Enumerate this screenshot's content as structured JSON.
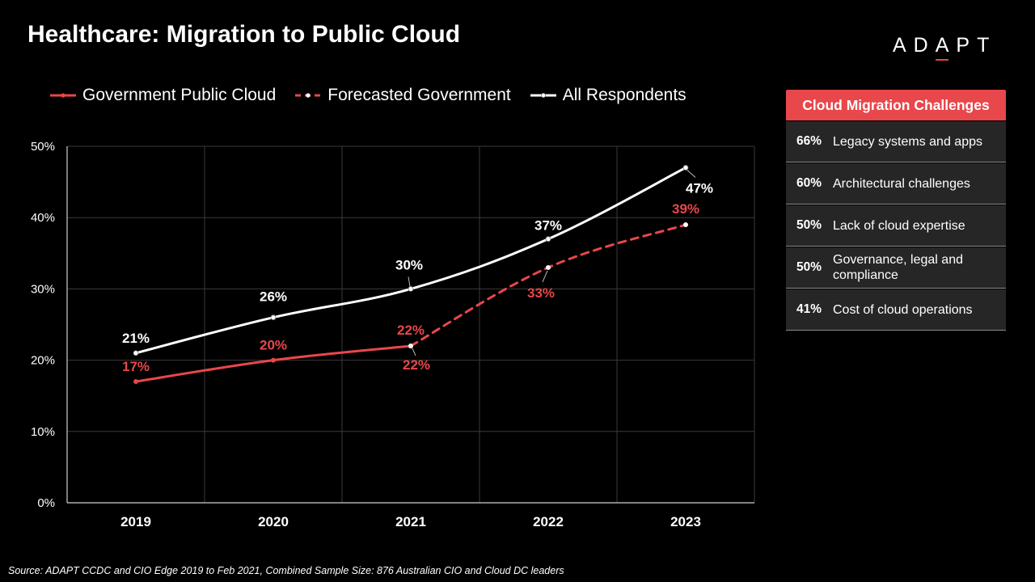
{
  "page": {
    "title": "Healthcare: Migration to Public Cloud",
    "logo": {
      "before": "AD",
      "accent": "A",
      "after": "PT"
    },
    "source": "Source: ADAPT CCDC and CIO Edge 2019  to Feb 2021, Combined Sample Size: 876 Australian CIO and Cloud DC leaders"
  },
  "colors": {
    "background": "#000000",
    "accent": "#e8474b",
    "panel_row": "#262626",
    "line_white": "#ffffff",
    "grid": "#3a3a3a"
  },
  "chart_data": {
    "type": "line",
    "title": "",
    "xlabel": "",
    "ylabel": "",
    "categories": [
      "2019",
      "2020",
      "2021",
      "2022",
      "2023"
    ],
    "ylim": [
      0,
      50
    ],
    "y_ticks": [
      "0%",
      "10%",
      "20%",
      "30%",
      "40%",
      "50%"
    ],
    "grid": true,
    "legend_position": "top-left",
    "series": [
      {
        "name": "Government Public Cloud",
        "values": [
          17,
          20,
          22,
          null,
          null
        ],
        "labels": [
          "17%",
          "20%",
          "22%",
          "",
          ""
        ],
        "color": "#e8474b",
        "style": "solid"
      },
      {
        "name": "Forecasted Government",
        "values": [
          null,
          null,
          22,
          33,
          39
        ],
        "labels": [
          "",
          "",
          "22%",
          "33%",
          "39%"
        ],
        "color": "#e8474b",
        "style": "dashed"
      },
      {
        "name": "All Respondents",
        "values": [
          21,
          26,
          30,
          37,
          47
        ],
        "labels": [
          "21%",
          "26%",
          "30%",
          "37%",
          "47%"
        ],
        "color": "#ffffff",
        "style": "solid"
      }
    ]
  },
  "panel": {
    "title": "Cloud Migration Challenges",
    "rows": [
      {
        "pct": "66%",
        "label": "Legacy systems and apps"
      },
      {
        "pct": "60%",
        "label": "Architectural challenges"
      },
      {
        "pct": "50%",
        "label": "Lack of cloud expertise"
      },
      {
        "pct": "50%",
        "label": "Governance, legal and compliance"
      },
      {
        "pct": "41%",
        "label": "Cost of cloud operations"
      }
    ]
  }
}
